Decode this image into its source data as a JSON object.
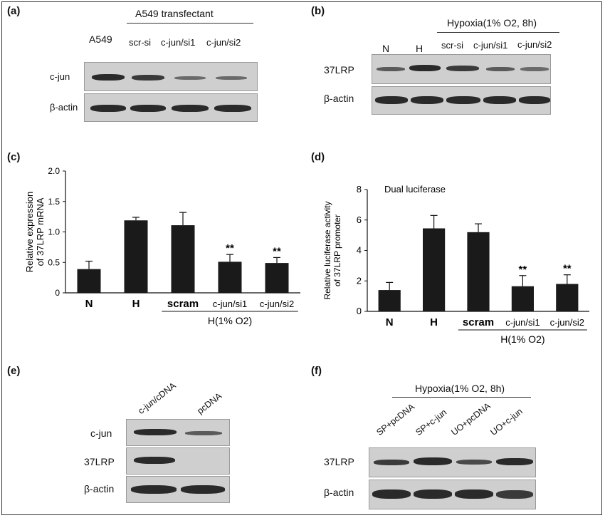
{
  "panels": {
    "a": {
      "label": "(a)",
      "group_label": "A549 transfectant",
      "lanes": [
        "A549",
        "scr-si",
        "c-jun/si1",
        "c-jun/si2"
      ],
      "rows": [
        "c-jun",
        "β-actin"
      ]
    },
    "b": {
      "label": "(b)",
      "group_label": "Hypoxia(1% O2, 8h)",
      "lanes": [
        "N",
        "H",
        "scr-si",
        "c-jun/si1",
        "c-jun/si2"
      ],
      "rows": [
        "37LRP",
        "β-actin"
      ]
    },
    "e": {
      "label": "(e)",
      "lanes": [
        "c-jun/cDNA",
        "pcDNA"
      ],
      "rows": [
        "c-jun",
        "37LRP",
        "β-actin"
      ]
    },
    "f": {
      "label": "(f)",
      "group_label": "Hypoxia(1% O2, 8h)",
      "lanes": [
        "SP+pcDNA",
        "SP+c-jun",
        "UO+pcDNA",
        "UO+c-jun"
      ],
      "rows": [
        "37LRP",
        "β-actin"
      ]
    }
  },
  "chart_data": [
    {
      "panel_label": "(c)",
      "type": "bar",
      "ylabel": "Relative expression of 37LRP mRNA",
      "categories": [
        "N",
        "H",
        "scram",
        "c-jun/si1",
        "c-jun/si2"
      ],
      "values": [
        0.39,
        1.19,
        1.11,
        0.51,
        0.49
      ],
      "errors": [
        0.13,
        0.05,
        0.21,
        0.12,
        0.09
      ],
      "significance": [
        "",
        "",
        "",
        "**",
        "**"
      ],
      "group_label": "H(1% O2)",
      "ylim": [
        0,
        2.0
      ],
      "yticks": [
        "0",
        "0.5",
        "1.0",
        "1.5",
        "2.0"
      ],
      "bar_color": "#1a1a1a"
    },
    {
      "panel_label": "(d)",
      "type": "bar",
      "title": "Dual luciferase",
      "ylabel": "Relative luciferase activity of 37LRP promoter",
      "categories": [
        "N",
        "H",
        "scram",
        "c-jun/si1",
        "c-jun/si2"
      ],
      "values": [
        1.4,
        5.45,
        5.2,
        1.65,
        1.8
      ],
      "errors": [
        0.5,
        0.85,
        0.55,
        0.7,
        0.6
      ],
      "significance": [
        "",
        "",
        "",
        "**",
        "**"
      ],
      "group_label": "H(1% O2)",
      "ylim": [
        0,
        8
      ],
      "yticks": [
        "0",
        "2",
        "4",
        "6",
        "8"
      ],
      "bar_color": "#1a1a1a"
    }
  ]
}
